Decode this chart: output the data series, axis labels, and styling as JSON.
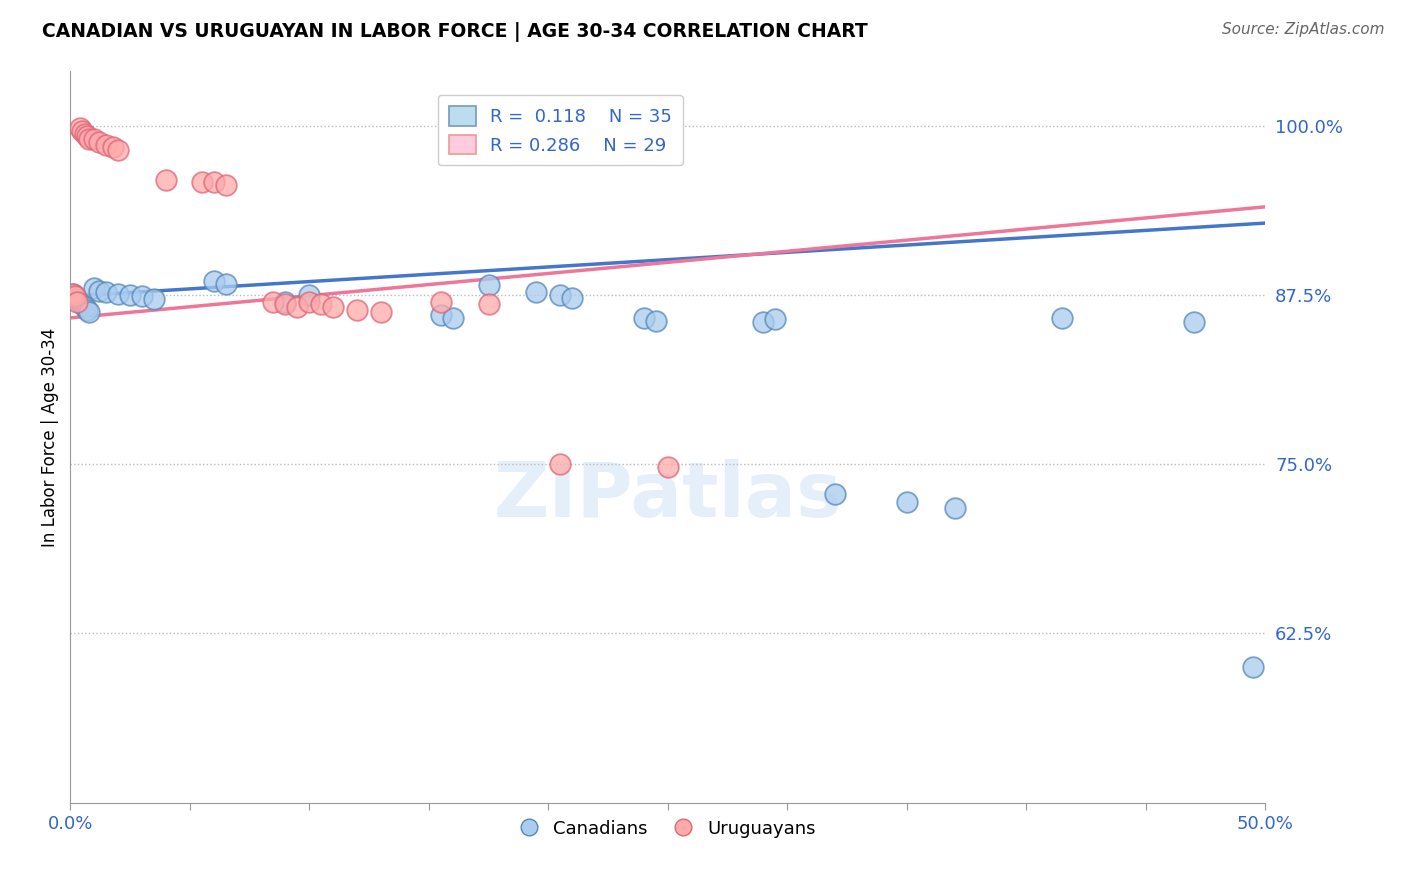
{
  "title": "CANADIAN VS URUGUAYAN IN LABOR FORCE | AGE 30-34 CORRELATION CHART",
  "source": "Source: ZipAtlas.com",
  "ylabel_label": "In Labor Force | Age 30-34",
  "xlim": [
    0.0,
    0.5
  ],
  "ylim": [
    0.5,
    1.04
  ],
  "xtick_positions": [
    0.0,
    0.05,
    0.1,
    0.15,
    0.2,
    0.25,
    0.3,
    0.35,
    0.4,
    0.45,
    0.5
  ],
  "xticklabels": [
    "0.0%",
    "",
    "",
    "",
    "",
    "",
    "",
    "",
    "",
    "",
    "50.0%"
  ],
  "ytick_positions": [
    0.625,
    0.75,
    0.875,
    1.0
  ],
  "ytick_labels": [
    "62.5%",
    "75.0%",
    "87.5%",
    "100.0%"
  ],
  "canadian_R": 0.118,
  "canadian_N": 35,
  "uruguayan_R": 0.286,
  "uruguayan_N": 29,
  "blue_fill": "#AACCEE",
  "blue_edge": "#5588BB",
  "pink_fill": "#FFAAAA",
  "pink_edge": "#DD6677",
  "blue_line": "#4477CC",
  "pink_line": "#EE7799",
  "grid_color": "#BBBBBB",
  "canadians_x": [
    0.001,
    0.002,
    0.003,
    0.004,
    0.005,
    0.006,
    0.007,
    0.008,
    0.01,
    0.012,
    0.015,
    0.02,
    0.025,
    0.03,
    0.035,
    0.06,
    0.065,
    0.09,
    0.1,
    0.155,
    0.16,
    0.175,
    0.195,
    0.205,
    0.21,
    0.24,
    0.245,
    0.29,
    0.295,
    0.32,
    0.35,
    0.37,
    0.415,
    0.47,
    0.495
  ],
  "canadians_y": [
    0.876,
    0.874,
    0.872,
    0.87,
    0.868,
    0.866,
    0.864,
    0.862,
    0.88,
    0.878,
    0.877,
    0.876,
    0.875,
    0.874,
    0.872,
    0.885,
    0.883,
    0.87,
    0.875,
    0.86,
    0.858,
    0.882,
    0.877,
    0.875,
    0.873,
    0.858,
    0.856,
    0.855,
    0.857,
    0.728,
    0.722,
    0.718,
    0.858,
    0.855,
    0.6
  ],
  "uruguayans_x": [
    0.001,
    0.002,
    0.003,
    0.004,
    0.005,
    0.006,
    0.007,
    0.008,
    0.01,
    0.012,
    0.015,
    0.018,
    0.02,
    0.04,
    0.055,
    0.06,
    0.065,
    0.085,
    0.09,
    0.095,
    0.1,
    0.105,
    0.11,
    0.12,
    0.13,
    0.155,
    0.175,
    0.205,
    0.25
  ],
  "uruguayans_y": [
    0.876,
    0.874,
    0.87,
    0.998,
    0.996,
    0.994,
    0.992,
    0.99,
    0.99,
    0.988,
    0.986,
    0.984,
    0.982,
    0.96,
    0.958,
    0.958,
    0.956,
    0.87,
    0.868,
    0.866,
    0.87,
    0.868,
    0.866,
    0.864,
    0.862,
    0.87,
    0.868,
    0.75,
    0.748
  ]
}
